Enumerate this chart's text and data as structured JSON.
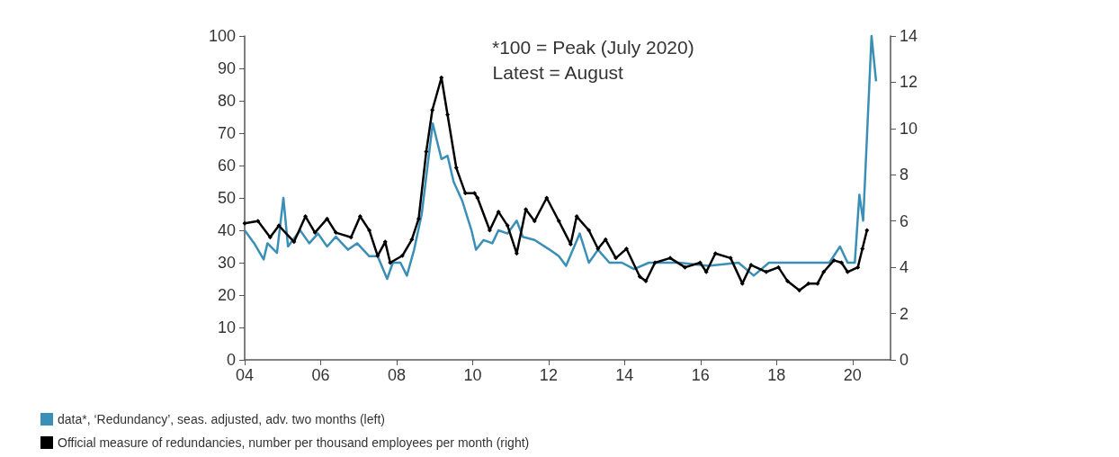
{
  "chart_data": {
    "type": "line",
    "annotations": [
      "*100 = Peak (July 2020)",
      "Latest = August"
    ],
    "xlim": [
      2004,
      2021
    ],
    "xticks": [
      {
        "value": 2004,
        "label": "04"
      },
      {
        "value": 2006,
        "label": "06"
      },
      {
        "value": 2008,
        "label": "08"
      },
      {
        "value": 2010,
        "label": "10"
      },
      {
        "value": 2012,
        "label": "12"
      },
      {
        "value": 2014,
        "label": "14"
      },
      {
        "value": 2016,
        "label": "16"
      },
      {
        "value": 2018,
        "label": "18"
      },
      {
        "value": 2020,
        "label": "20"
      }
    ],
    "ylim": [
      0,
      100
    ],
    "yticks": [
      0,
      10,
      20,
      30,
      40,
      50,
      60,
      70,
      80,
      90,
      100
    ],
    "y2lim": [
      0,
      14
    ],
    "y2ticks": [
      0,
      2,
      4,
      6,
      8,
      10,
      12,
      14
    ],
    "grid": false,
    "legend": "bottom",
    "series": [
      {
        "name": "data*, ‘Redundancy’, seas. adjusted, adv. two months (left)",
        "color": "#3a8fb7",
        "marker": "none",
        "axis": "y",
        "x": [
          2004.0,
          2004.25,
          2004.5,
          2004.6,
          2004.85,
          2005.02,
          2005.14,
          2005.46,
          2005.7,
          2005.93,
          2006.17,
          2006.4,
          2006.72,
          2006.96,
          2007.28,
          2007.5,
          2007.75,
          2007.9,
          2008.1,
          2008.27,
          2008.46,
          2008.66,
          2008.95,
          2009.18,
          2009.34,
          2009.5,
          2009.73,
          2009.97,
          2010.09,
          2010.29,
          2010.52,
          2010.68,
          2010.92,
          2011.16,
          2011.32,
          2011.63,
          2012.03,
          2012.27,
          2012.46,
          2012.82,
          2013.06,
          2013.3,
          2013.6,
          2013.93,
          2014.25,
          2014.64,
          2015.43,
          2016.2,
          2017.0,
          2017.4,
          2017.8,
          2018.6,
          2019.39,
          2019.67,
          2019.87,
          2020.06,
          2020.18,
          2020.28,
          2020.5,
          2020.62
        ],
        "values": [
          40,
          36,
          31,
          36,
          33,
          50,
          35,
          40,
          36,
          39,
          35,
          38,
          34,
          36,
          32,
          32,
          25,
          30,
          30,
          26,
          34,
          45,
          73,
          62,
          63,
          55,
          49,
          40,
          34,
          37,
          36,
          40,
          39,
          43,
          38,
          37,
          34,
          32,
          29,
          39,
          30,
          34,
          30,
          30,
          28,
          30,
          30,
          29,
          30,
          26,
          30,
          30,
          30,
          35,
          30,
          30,
          51,
          43,
          100,
          86
        ]
      },
      {
        "name": "Official measure of redundancies, number per thousand employees per month (right)",
        "color": "#000000",
        "marker": "diamond",
        "axis": "y2",
        "x": [
          2004.0,
          2004.35,
          2004.67,
          2004.9,
          2005.3,
          2005.6,
          2005.85,
          2006.17,
          2006.4,
          2006.8,
          2007.04,
          2007.28,
          2007.5,
          2007.7,
          2007.83,
          2008.15,
          2008.4,
          2008.58,
          2008.78,
          2008.94,
          2009.18,
          2009.34,
          2009.57,
          2009.81,
          2010.05,
          2010.13,
          2010.45,
          2010.68,
          2010.92,
          2011.16,
          2011.4,
          2011.63,
          2011.95,
          2012.27,
          2012.58,
          2012.74,
          2013.06,
          2013.3,
          2013.5,
          2013.77,
          2014.05,
          2014.4,
          2014.56,
          2014.8,
          2015.2,
          2015.59,
          2015.99,
          2016.15,
          2016.39,
          2016.79,
          2017.1,
          2017.33,
          2017.73,
          2018.05,
          2018.29,
          2018.6,
          2018.84,
          2019.08,
          2019.24,
          2019.51,
          2019.71,
          2019.87,
          2020.14,
          2020.26,
          2020.38
        ],
        "values": [
          5.9,
          6.0,
          5.3,
          5.8,
          5.1,
          6.2,
          5.5,
          6.1,
          5.5,
          5.3,
          6.2,
          5.6,
          4.5,
          5.1,
          4.2,
          4.5,
          5.2,
          6.1,
          9.0,
          10.8,
          12.2,
          10.6,
          8.3,
          7.2,
          7.2,
          7.0,
          5.6,
          6.4,
          5.8,
          4.6,
          6.5,
          6.0,
          7.0,
          6.0,
          5.0,
          6.2,
          5.6,
          4.8,
          5.2,
          4.4,
          4.8,
          3.6,
          3.4,
          4.2,
          4.4,
          4.0,
          4.2,
          3.8,
          4.6,
          4.4,
          3.3,
          4.1,
          3.8,
          4.0,
          3.4,
          3.0,
          3.3,
          3.3,
          3.8,
          4.3,
          4.2,
          3.8,
          4.0,
          4.8,
          5.6
        ]
      }
    ]
  }
}
